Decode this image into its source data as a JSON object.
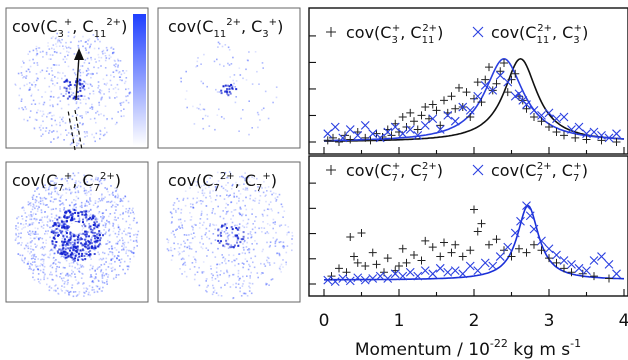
{
  "images": {
    "top_left": {
      "label_main": "cov(C",
      "label_sub1": "3",
      "label_sup1": "+",
      "label_mid": ", C",
      "label_sub2": "11",
      "label_sup2": "2+",
      "label_end": ")"
    },
    "top_right": {
      "label_main": "cov(C",
      "label_sub1": "11",
      "label_sup1": "2+",
      "label_mid": ", C",
      "label_sub2": "3",
      "label_sup2": "+",
      "label_end": ")"
    },
    "bottom_left": {
      "label_main": "cov(C",
      "label_sub1": "7",
      "label_sup1": "+",
      "label_mid": ", C",
      "label_sub2": "7",
      "label_sup2": "2+",
      "label_end": ")"
    },
    "bottom_right": {
      "label_main": "cov(C",
      "label_sub1": "7",
      "label_sup1": "2+",
      "label_mid": ", C",
      "label_sub2": "7",
      "label_sup2": "+",
      "label_end": ")"
    },
    "colorbar_color": "#1f3fff"
  },
  "chart_data": [
    {
      "type": "scatter",
      "panel": "top",
      "xlim": [
        0,
        4
      ],
      "ylim": [
        0,
        1.25
      ],
      "grid": false,
      "legend_position": "top",
      "series": [
        {
          "name": "cov(C3+, C11 2+)",
          "legend": {
            "pre": "cov(C",
            "s1": "3",
            "p1": "+",
            "mid": ", C",
            "s2": "11",
            "p2": "2+",
            "end": ")"
          },
          "marker": "+",
          "color": "#222222",
          "points": [
            [
              0.05,
              0.02
            ],
            [
              0.12,
              0.05
            ],
            [
              0.2,
              0.0
            ],
            [
              0.28,
              0.08
            ],
            [
              0.35,
              0.03
            ],
            [
              0.45,
              0.12
            ],
            [
              0.55,
              0.05
            ],
            [
              0.62,
              0.02
            ],
            [
              0.7,
              0.1
            ],
            [
              0.78,
              0.06
            ],
            [
              0.85,
              0.15
            ],
            [
              0.9,
              0.08
            ],
            [
              0.95,
              0.22
            ],
            [
              1.0,
              0.12
            ],
            [
              1.05,
              0.3
            ],
            [
              1.1,
              0.18
            ],
            [
              1.15,
              0.35
            ],
            [
              1.2,
              0.25
            ],
            [
              1.25,
              0.15
            ],
            [
              1.3,
              0.32
            ],
            [
              1.35,
              0.42
            ],
            [
              1.4,
              0.28
            ],
            [
              1.45,
              0.45
            ],
            [
              1.5,
              0.38
            ],
            [
              1.55,
              0.2
            ],
            [
              1.6,
              0.5
            ],
            [
              1.65,
              0.35
            ],
            [
              1.7,
              0.55
            ],
            [
              1.75,
              0.4
            ],
            [
              1.8,
              0.65
            ],
            [
              1.85,
              0.42
            ],
            [
              1.9,
              0.6
            ],
            [
              1.95,
              0.3
            ],
            [
              2.0,
              0.52
            ],
            [
              2.05,
              0.72
            ],
            [
              2.1,
              0.48
            ],
            [
              2.15,
              0.75
            ],
            [
              2.2,
              0.9
            ],
            [
              2.25,
              0.62
            ],
            [
              2.3,
              0.7
            ],
            [
              2.35,
              0.85
            ],
            [
              2.4,
              0.95
            ],
            [
              2.45,
              0.6
            ],
            [
              2.5,
              0.75
            ],
            [
              2.55,
              0.82
            ],
            [
              2.6,
              0.55
            ],
            [
              2.65,
              0.5
            ],
            [
              2.7,
              0.4
            ],
            [
              2.8,
              0.3
            ],
            [
              2.9,
              0.25
            ],
            [
              3.0,
              0.18
            ],
            [
              3.1,
              0.12
            ],
            [
              3.2,
              0.08
            ],
            [
              3.35,
              0.05
            ],
            [
              3.5,
              0.03
            ],
            [
              3.7,
              0.02
            ],
            [
              3.9,
              0.0
            ]
          ]
        },
        {
          "name": "cov(C11 2+, C3+)",
          "legend": {
            "pre": "cov(C",
            "s1": "11",
            "p1": "2+",
            "mid": ", C",
            "s2": "3",
            "p2": "+",
            "end": ")"
          },
          "marker": "x",
          "color": "#2a3fe0",
          "points": [
            [
              0.05,
              0.1
            ],
            [
              0.15,
              0.18
            ],
            [
              0.25,
              0.05
            ],
            [
              0.35,
              0.15
            ],
            [
              0.45,
              0.08
            ],
            [
              0.55,
              0.2
            ],
            [
              0.65,
              0.1
            ],
            [
              0.75,
              0.05
            ],
            [
              0.85,
              0.12
            ],
            [
              0.95,
              0.18
            ],
            [
              1.05,
              0.1
            ],
            [
              1.15,
              0.15
            ],
            [
              1.25,
              0.08
            ],
            [
              1.35,
              0.2
            ],
            [
              1.45,
              0.28
            ],
            [
              1.55,
              0.15
            ],
            [
              1.65,
              0.32
            ],
            [
              1.75,
              0.25
            ],
            [
              1.85,
              0.42
            ],
            [
              1.95,
              0.38
            ],
            [
              2.05,
              0.55
            ],
            [
              2.15,
              0.68
            ],
            [
              2.25,
              0.62
            ],
            [
              2.35,
              0.8
            ],
            [
              2.45,
              0.72
            ],
            [
              2.55,
              0.55
            ],
            [
              2.6,
              0.58
            ],
            [
              2.65,
              0.5
            ],
            [
              2.7,
              0.45
            ],
            [
              2.8,
              0.38
            ],
            [
              2.9,
              0.32
            ],
            [
              3.0,
              0.35
            ],
            [
              3.1,
              0.28
            ],
            [
              3.2,
              0.3
            ],
            [
              3.3,
              0.15
            ],
            [
              3.4,
              0.18
            ],
            [
              3.5,
              0.1
            ],
            [
              3.6,
              0.12
            ],
            [
              3.7,
              0.08
            ],
            [
              3.8,
              0.05
            ],
            [
              3.9,
              0.1
            ]
          ]
        }
      ],
      "fits": [
        {
          "color": "#111111",
          "peak_x": 2.62,
          "peak_y": 1.0,
          "sigma": 0.34
        },
        {
          "color": "#2a3fe0",
          "peak_x": 2.4,
          "peak_y": 1.0,
          "sigma": 0.4
        }
      ]
    },
    {
      "type": "scatter",
      "panel": "bottom",
      "xlim": [
        0,
        4
      ],
      "ylim": [
        -0.05,
        1.2
      ],
      "grid": false,
      "legend_position": "top",
      "series": [
        {
          "name": "cov(C7+, C7 2+)",
          "legend": {
            "pre": "cov(C",
            "s1": "7",
            "p1": "+",
            "mid": ", C",
            "s2": "7",
            "p2": "2+",
            "end": ")"
          },
          "marker": "+",
          "color": "#222222",
          "points": [
            [
              0.1,
              0.05
            ],
            [
              0.2,
              0.15
            ],
            [
              0.3,
              0.1
            ],
            [
              0.35,
              0.55
            ],
            [
              0.4,
              0.3
            ],
            [
              0.45,
              0.22
            ],
            [
              0.5,
              0.6
            ],
            [
              0.55,
              0.18
            ],
            [
              0.65,
              0.35
            ],
            [
              0.7,
              0.2
            ],
            [
              0.8,
              0.1
            ],
            [
              0.85,
              0.28
            ],
            [
              0.95,
              0.12
            ],
            [
              1.0,
              0.18
            ],
            [
              1.05,
              0.4
            ],
            [
              1.1,
              0.22
            ],
            [
              1.2,
              0.32
            ],
            [
              1.3,
              0.25
            ],
            [
              1.35,
              0.5
            ],
            [
              1.45,
              0.42
            ],
            [
              1.55,
              0.3
            ],
            [
              1.6,
              0.48
            ],
            [
              1.7,
              0.35
            ],
            [
              1.75,
              0.45
            ],
            [
              1.85,
              0.3
            ],
            [
              1.95,
              0.38
            ],
            [
              2.0,
              0.9
            ],
            [
              2.05,
              0.62
            ],
            [
              2.1,
              0.72
            ],
            [
              2.2,
              0.45
            ],
            [
              2.3,
              0.52
            ],
            [
              2.4,
              0.38
            ],
            [
              2.5,
              0.3
            ],
            [
              2.6,
              0.4
            ],
            [
              2.7,
              0.35
            ],
            [
              2.8,
              0.45
            ],
            [
              2.9,
              0.38
            ],
            [
              3.0,
              0.28
            ],
            [
              3.1,
              0.22
            ],
            [
              3.2,
              0.15
            ],
            [
              3.3,
              0.1
            ],
            [
              3.45,
              0.08
            ],
            [
              3.6,
              0.05
            ],
            [
              3.8,
              0.02
            ]
          ]
        },
        {
          "name": "cov(C7 2+, C7+)",
          "legend": {
            "pre": "cov(C",
            "s1": "7",
            "p1": "2+",
            "mid": ", C",
            "s2": "7",
            "p2": "+",
            "end": ")"
          },
          "marker": "x",
          "color": "#2a3fe0",
          "points": [
            [
              0.05,
              0.0
            ],
            [
              0.15,
              -0.02
            ],
            [
              0.25,
              0.02
            ],
            [
              0.35,
              -0.01
            ],
            [
              0.45,
              0.03
            ],
            [
              0.55,
              0.0
            ],
            [
              0.65,
              0.02
            ],
            [
              0.75,
              0.05
            ],
            [
              0.85,
              0.02
            ],
            [
              0.95,
              0.08
            ],
            [
              1.05,
              0.05
            ],
            [
              1.15,
              0.1
            ],
            [
              1.25,
              0.05
            ],
            [
              1.35,
              0.12
            ],
            [
              1.45,
              0.08
            ],
            [
              1.55,
              0.15
            ],
            [
              1.65,
              0.1
            ],
            [
              1.75,
              0.12
            ],
            [
              1.85,
              0.08
            ],
            [
              1.95,
              0.18
            ],
            [
              2.05,
              0.12
            ],
            [
              2.15,
              0.22
            ],
            [
              2.25,
              0.18
            ],
            [
              2.35,
              0.3
            ],
            [
              2.45,
              0.42
            ],
            [
              2.55,
              0.6
            ],
            [
              2.62,
              0.75
            ],
            [
              2.7,
              0.95
            ],
            [
              2.75,
              0.82
            ],
            [
              2.8,
              0.65
            ],
            [
              2.9,
              0.5
            ],
            [
              3.0,
              0.4
            ],
            [
              3.1,
              0.32
            ],
            [
              3.2,
              0.25
            ],
            [
              3.3,
              0.2
            ],
            [
              3.4,
              0.15
            ],
            [
              3.5,
              0.12
            ],
            [
              3.6,
              0.25
            ],
            [
              3.7,
              0.3
            ],
            [
              3.8,
              0.2
            ],
            [
              3.9,
              0.08
            ]
          ]
        }
      ],
      "fits": [
        {
          "color": "#1a2fd8",
          "peak_x": 2.72,
          "peak_y": 0.95,
          "sigma": 0.22
        }
      ]
    }
  ],
  "x_axis": {
    "ticks": [
      "0",
      "1",
      "2",
      "3",
      "4"
    ],
    "label_pre": "Momentum / 10",
    "label_exp": "-22",
    "label_post": " kg m s",
    "label_exp2": "-1"
  }
}
